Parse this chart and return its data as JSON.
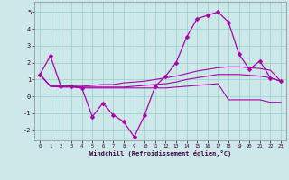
{
  "x": [
    0,
    1,
    2,
    3,
    4,
    5,
    6,
    7,
    8,
    9,
    10,
    11,
    12,
    13,
    14,
    15,
    16,
    17,
    18,
    19,
    20,
    21,
    22,
    23
  ],
  "line_main": [
    1.3,
    2.4,
    0.6,
    0.6,
    0.5,
    -1.2,
    -0.4,
    -1.1,
    -1.5,
    -2.4,
    -1.1,
    0.6,
    1.2,
    2.0,
    3.5,
    4.6,
    4.8,
    5.0,
    4.4,
    2.5,
    1.6,
    2.1,
    1.1,
    0.9
  ],
  "line_trend1": [
    1.3,
    0.6,
    0.6,
    0.6,
    0.6,
    0.65,
    0.7,
    0.7,
    0.8,
    0.85,
    0.9,
    1.0,
    1.1,
    1.2,
    1.35,
    1.5,
    1.6,
    1.7,
    1.75,
    1.75,
    1.7,
    1.65,
    1.55,
    0.9
  ],
  "line_trend2": [
    1.3,
    0.6,
    0.6,
    0.6,
    0.55,
    0.55,
    0.55,
    0.55,
    0.55,
    0.6,
    0.65,
    0.7,
    0.75,
    0.85,
    1.0,
    1.1,
    1.2,
    1.3,
    1.3,
    1.3,
    1.25,
    1.2,
    1.1,
    0.9
  ],
  "line_trend3": [
    1.3,
    0.6,
    0.55,
    0.55,
    0.5,
    0.5,
    0.5,
    0.5,
    0.5,
    0.5,
    0.5,
    0.5,
    0.5,
    0.55,
    0.6,
    0.65,
    0.7,
    0.75,
    -0.2,
    -0.2,
    -0.2,
    -0.2,
    -0.35,
    -0.35
  ],
  "bg_color": "#cce8e8",
  "grid_color": "#99cccc",
  "line_color": "#aa00aa",
  "xlabel": "Windchill (Refroidissement éolien,°C)",
  "ylim": [
    -2.6,
    5.6
  ],
  "xlim": [
    -0.5,
    23.5
  ],
  "yticks": [
    -2,
    -1,
    0,
    1,
    2,
    3,
    4,
    5
  ],
  "xticks": [
    0,
    1,
    2,
    3,
    4,
    5,
    6,
    7,
    8,
    9,
    10,
    11,
    12,
    13,
    14,
    15,
    16,
    17,
    18,
    19,
    20,
    21,
    22,
    23
  ]
}
